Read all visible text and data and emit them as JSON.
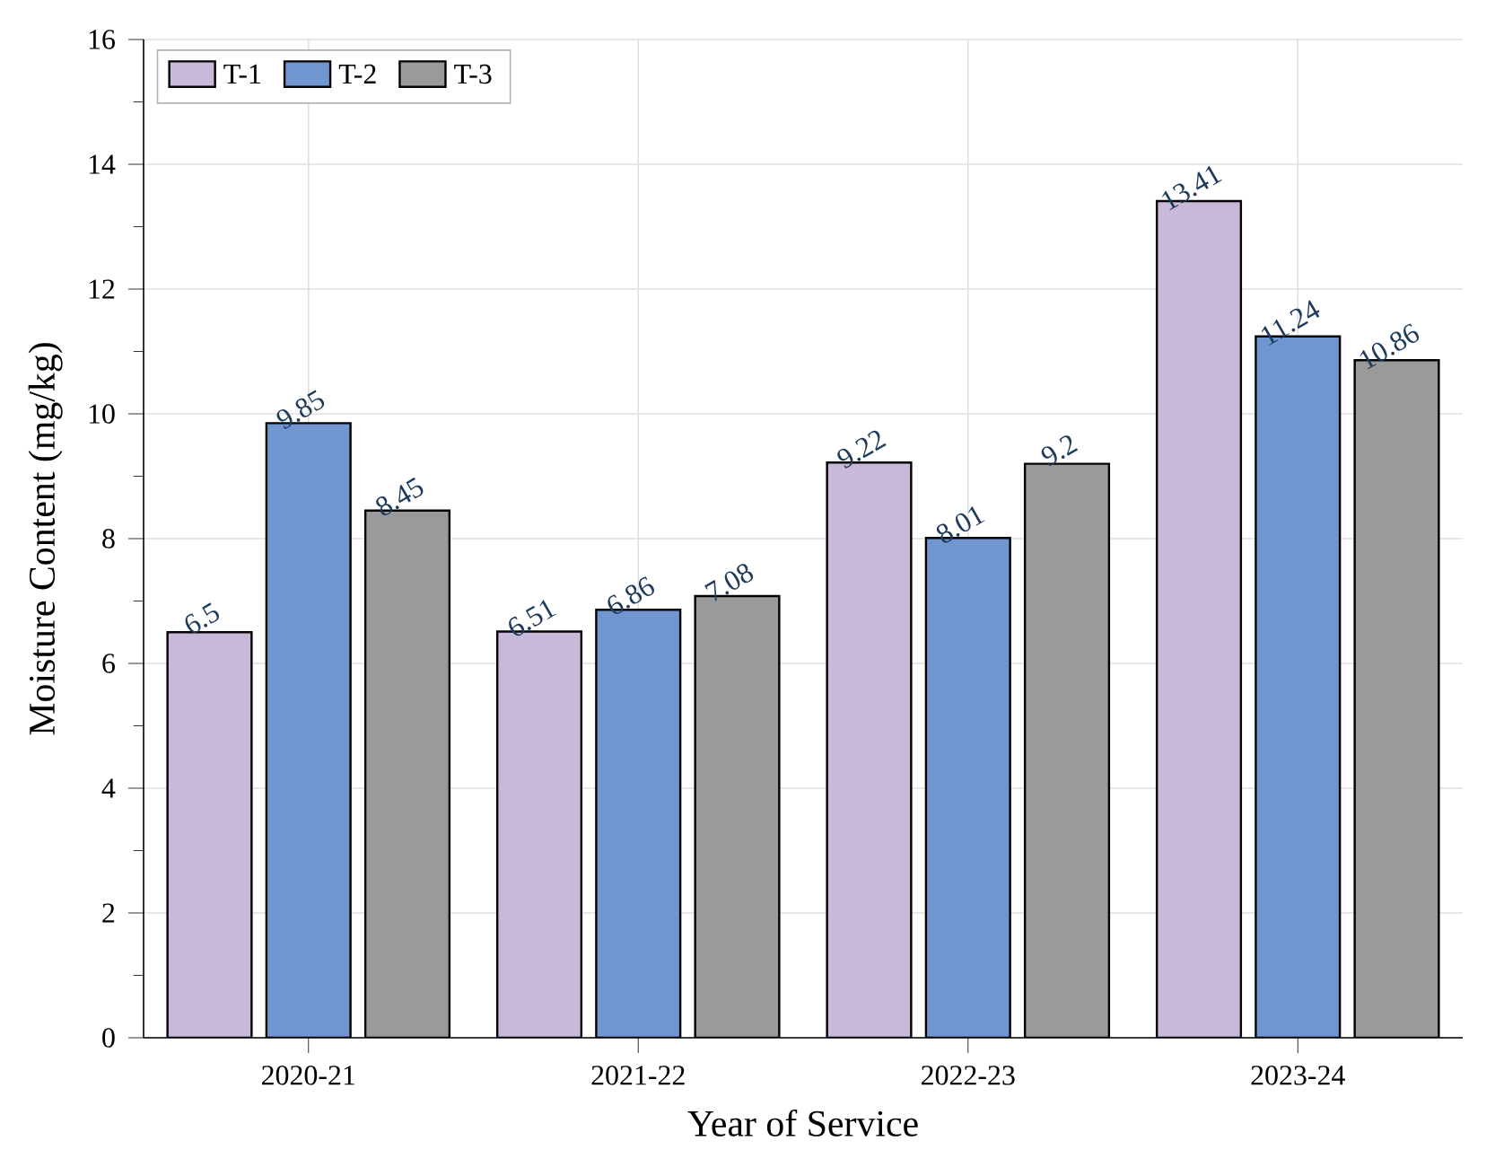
{
  "chart_data": {
    "type": "bar",
    "xlabel": "Year of Service",
    "ylabel": "Moisture Content (mg/kg)",
    "categories": [
      "2020-21",
      "2021-22",
      "2022-23",
      "2023-24"
    ],
    "series": [
      {
        "name": "T-1",
        "color": "#c8b8d9",
        "values": [
          6.5,
          6.51,
          9.22,
          13.41
        ]
      },
      {
        "name": "T-2",
        "color": "#6f96cf",
        "values": [
          9.85,
          6.86,
          8.01,
          11.24
        ]
      },
      {
        "name": "T-3",
        "color": "#9a9a9a",
        "values": [
          8.45,
          7.08,
          9.2,
          10.86
        ]
      }
    ],
    "ylim": [
      0,
      16
    ],
    "yticks": [
      0,
      2,
      4,
      6,
      8,
      10,
      12,
      14,
      16
    ],
    "grid": true,
    "legend": "top left",
    "data_labels": true
  }
}
